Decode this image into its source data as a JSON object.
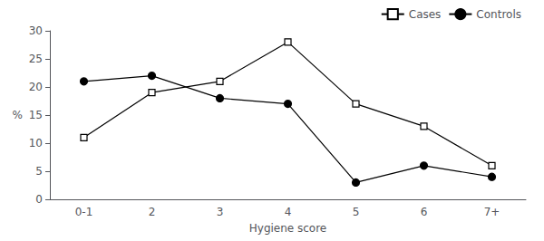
{
  "chart_data": {
    "type": "line",
    "categories": [
      "0-1",
      "2",
      "3",
      "4",
      "5",
      "6",
      "7+"
    ],
    "series": [
      {
        "name": "Cases",
        "color": "#000000",
        "marker": "open square",
        "line_style": "solid",
        "values": [
          11,
          19,
          21,
          28,
          17,
          13,
          6
        ]
      },
      {
        "name": "Controls",
        "color": "#000000",
        "marker": "circle",
        "line_style": "solid",
        "values": [
          21,
          22,
          18,
          17,
          3,
          6,
          4
        ]
      }
    ],
    "xlabel": "Hygiene score",
    "ylabel": "%",
    "ylim": [
      0,
      30
    ],
    "yticks": [
      0,
      5,
      10,
      15,
      20,
      25,
      30
    ],
    "grid": false,
    "legend": "upper right"
  }
}
